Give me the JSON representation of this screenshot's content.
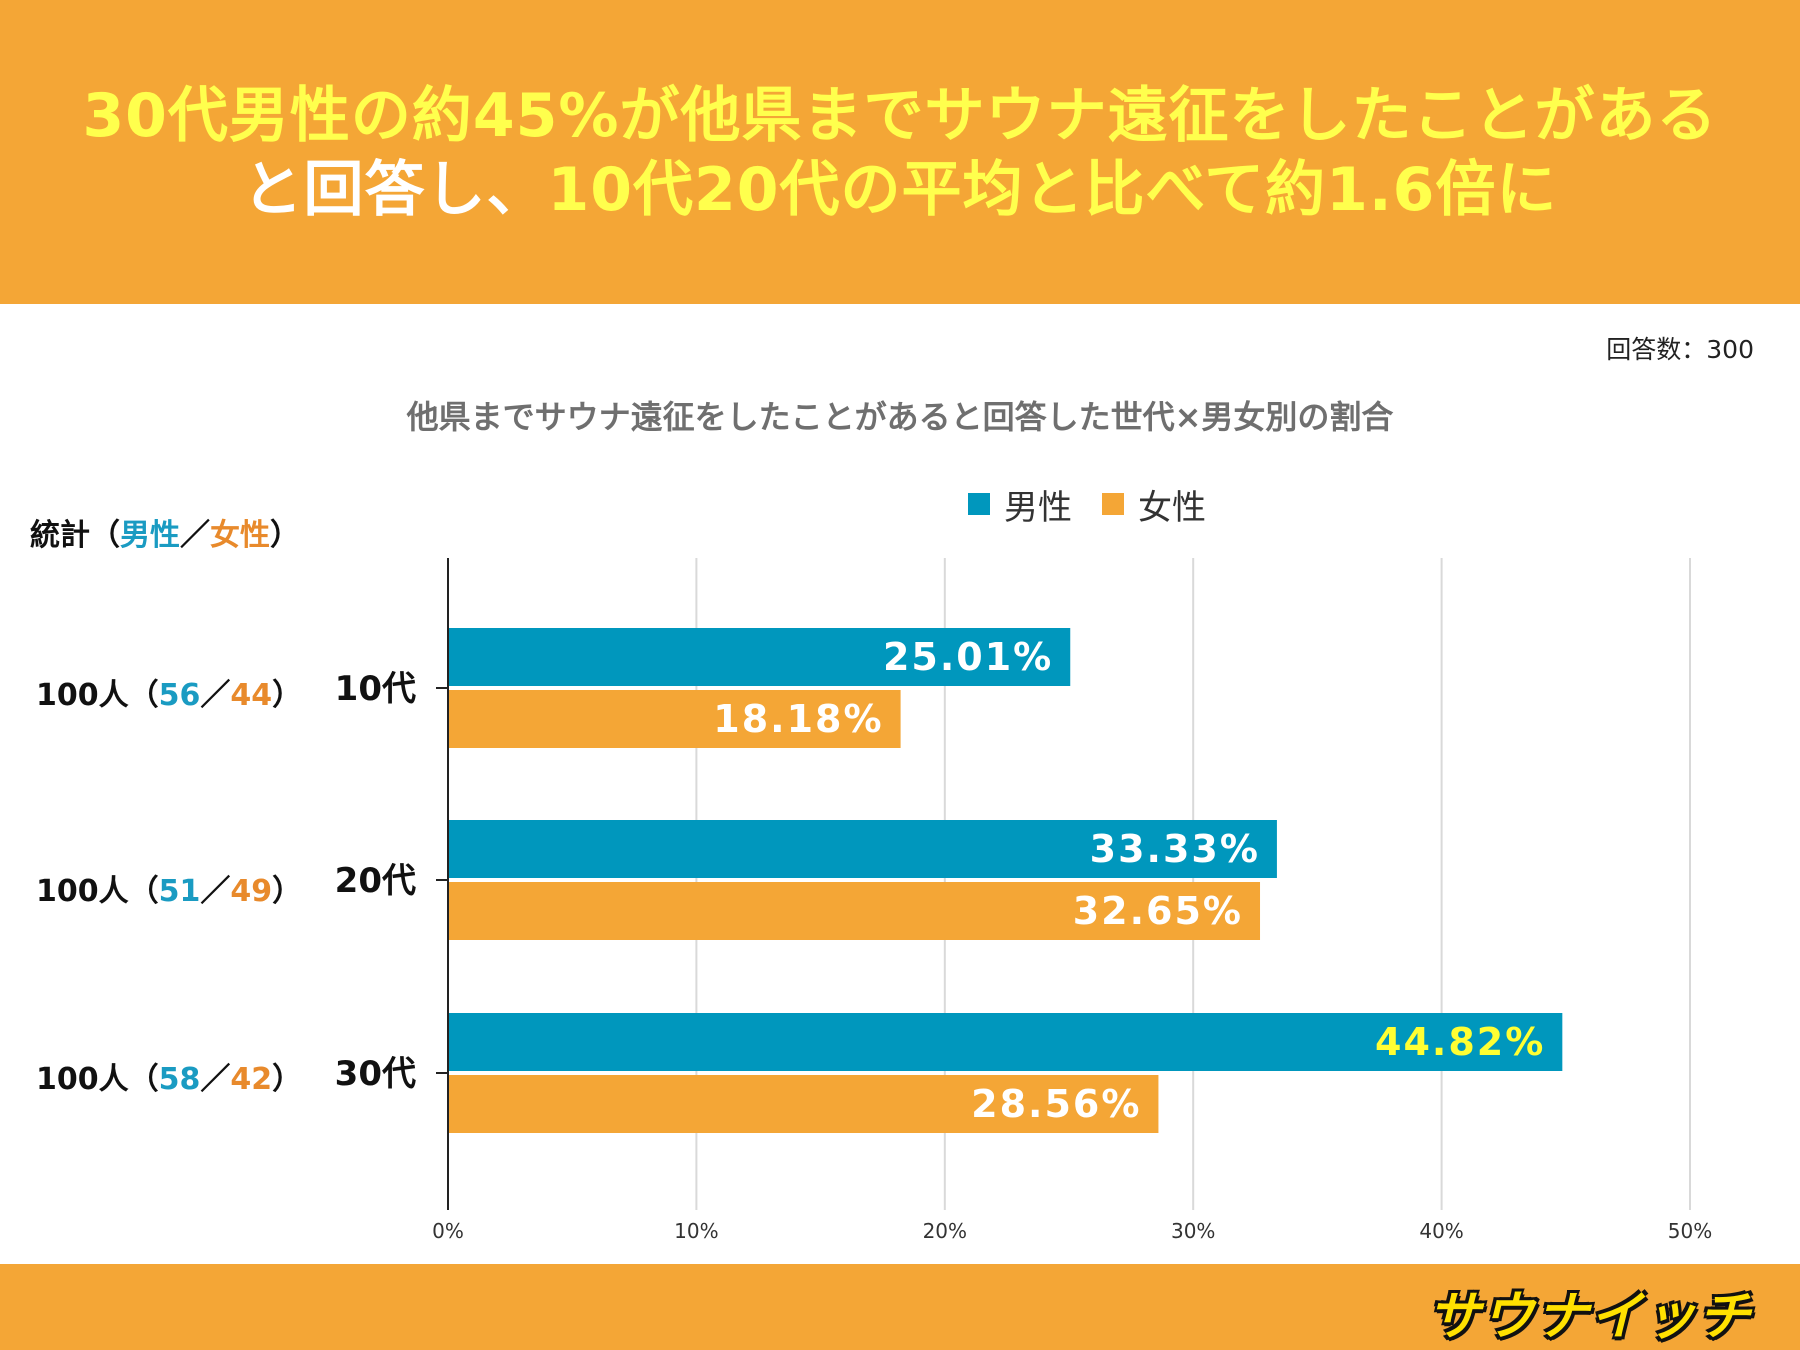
{
  "headline": {
    "line1": "30代男性の約45%が他県までサウナ遠征をしたことがある",
    "line2_white": "と回答し、",
    "line2_yellow": "10代20代の平均と比べて約1.6倍に"
  },
  "respondents": "回答数：300",
  "stats": {
    "label_prefix": "統計（",
    "male": "男性",
    "slash": "／",
    "female": "女性",
    "label_suffix": "）",
    "rows": [
      {
        "total": "100人（",
        "male": "56",
        "female": "44",
        "close": "）"
      },
      {
        "total": "100人（",
        "male": "51",
        "female": "49",
        "close": "）"
      },
      {
        "total": "100人（",
        "male": "58",
        "female": "42",
        "close": "）"
      }
    ]
  },
  "colors": {
    "male": "#0097BD",
    "female": "#F4A636",
    "highlight": "#FFFF33",
    "header_bg": "#F4A636"
  },
  "logo_text": "サウナイッチ",
  "chart_data": {
    "type": "bar",
    "orientation": "horizontal",
    "title": "他県までサウナ遠征をしたことがあると回答した世代×男女別の割合",
    "categories": [
      "10代",
      "20代",
      "30代"
    ],
    "series": [
      {
        "name": "男性",
        "values": [
          25.01,
          33.33,
          44.82
        ],
        "labels": [
          "25.01%",
          "33.33%",
          "44.82%"
        ]
      },
      {
        "name": "女性",
        "values": [
          18.18,
          32.65,
          28.56
        ],
        "labels": [
          "18.18%",
          "32.65%",
          "28.56%"
        ]
      }
    ],
    "xlim": [
      0,
      50
    ],
    "xticks": [
      "0%",
      "10%",
      "20%",
      "30%",
      "40%",
      "50%"
    ],
    "grid": true,
    "legend": "top-center",
    "xlabel": "",
    "ylabel": ""
  }
}
